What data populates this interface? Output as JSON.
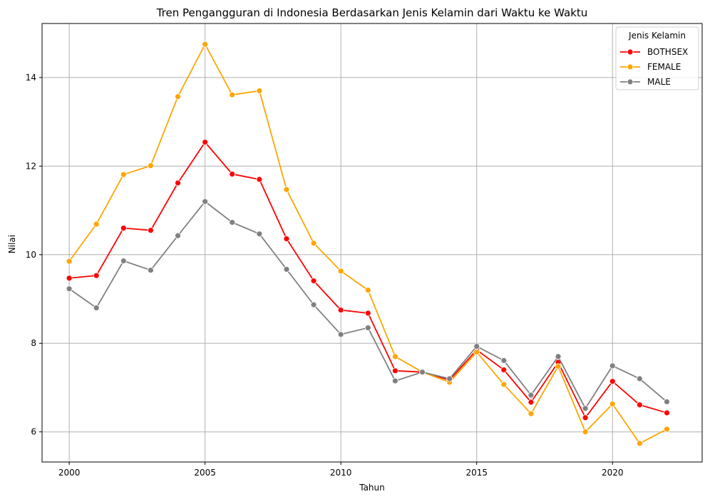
{
  "chart_data": {
    "type": "line",
    "title": "Tren Pengangguran di Indonesia Berdasarkan Jenis Kelamin dari Waktu ke Waktu",
    "xlabel": "Tahun",
    "ylabel": "Nilai",
    "xlim": [
      1999,
      2023.3
    ],
    "ylim": [
      5.32,
      15.22
    ],
    "xticks": [
      2000,
      2005,
      2010,
      2015,
      2020
    ],
    "yticks": [
      6,
      8,
      10,
      12,
      14
    ],
    "grid": true,
    "legend": {
      "title": "Jenis Kelamin",
      "placement": "top-right"
    },
    "x": [
      2000,
      2001,
      2002,
      2003,
      2004,
      2005,
      2006,
      2007,
      2008,
      2009,
      2010,
      2011,
      2012,
      2013,
      2014,
      2015,
      2016,
      2017,
      2018,
      2019,
      2020,
      2021,
      2022
    ],
    "series": [
      {
        "name": "BOTHSEX",
        "color": "#ff0000",
        "values": [
          9.47,
          9.53,
          10.6,
          10.55,
          11.62,
          12.54,
          11.82,
          11.7,
          10.36,
          9.41,
          8.75,
          8.68,
          7.38,
          7.35,
          7.17,
          7.85,
          7.4,
          6.67,
          7.57,
          6.32,
          7.14,
          6.61,
          6.43
        ]
      },
      {
        "name": "FEMALE",
        "color": "#ffa500",
        "values": [
          9.85,
          10.69,
          11.81,
          12.01,
          13.57,
          14.75,
          13.61,
          13.7,
          11.47,
          10.26,
          9.63,
          9.2,
          7.7,
          7.35,
          7.12,
          7.8,
          7.07,
          6.41,
          7.48,
          6.0,
          6.63,
          5.74,
          6.06
        ]
      },
      {
        "name": "MALE",
        "color": "#808080",
        "values": [
          9.23,
          8.8,
          9.86,
          9.65,
          10.43,
          11.2,
          10.73,
          10.47,
          9.67,
          8.87,
          8.2,
          8.35,
          7.15,
          7.35,
          7.2,
          7.93,
          7.61,
          6.83,
          7.7,
          6.53,
          7.49,
          7.2,
          6.68
        ]
      }
    ]
  }
}
